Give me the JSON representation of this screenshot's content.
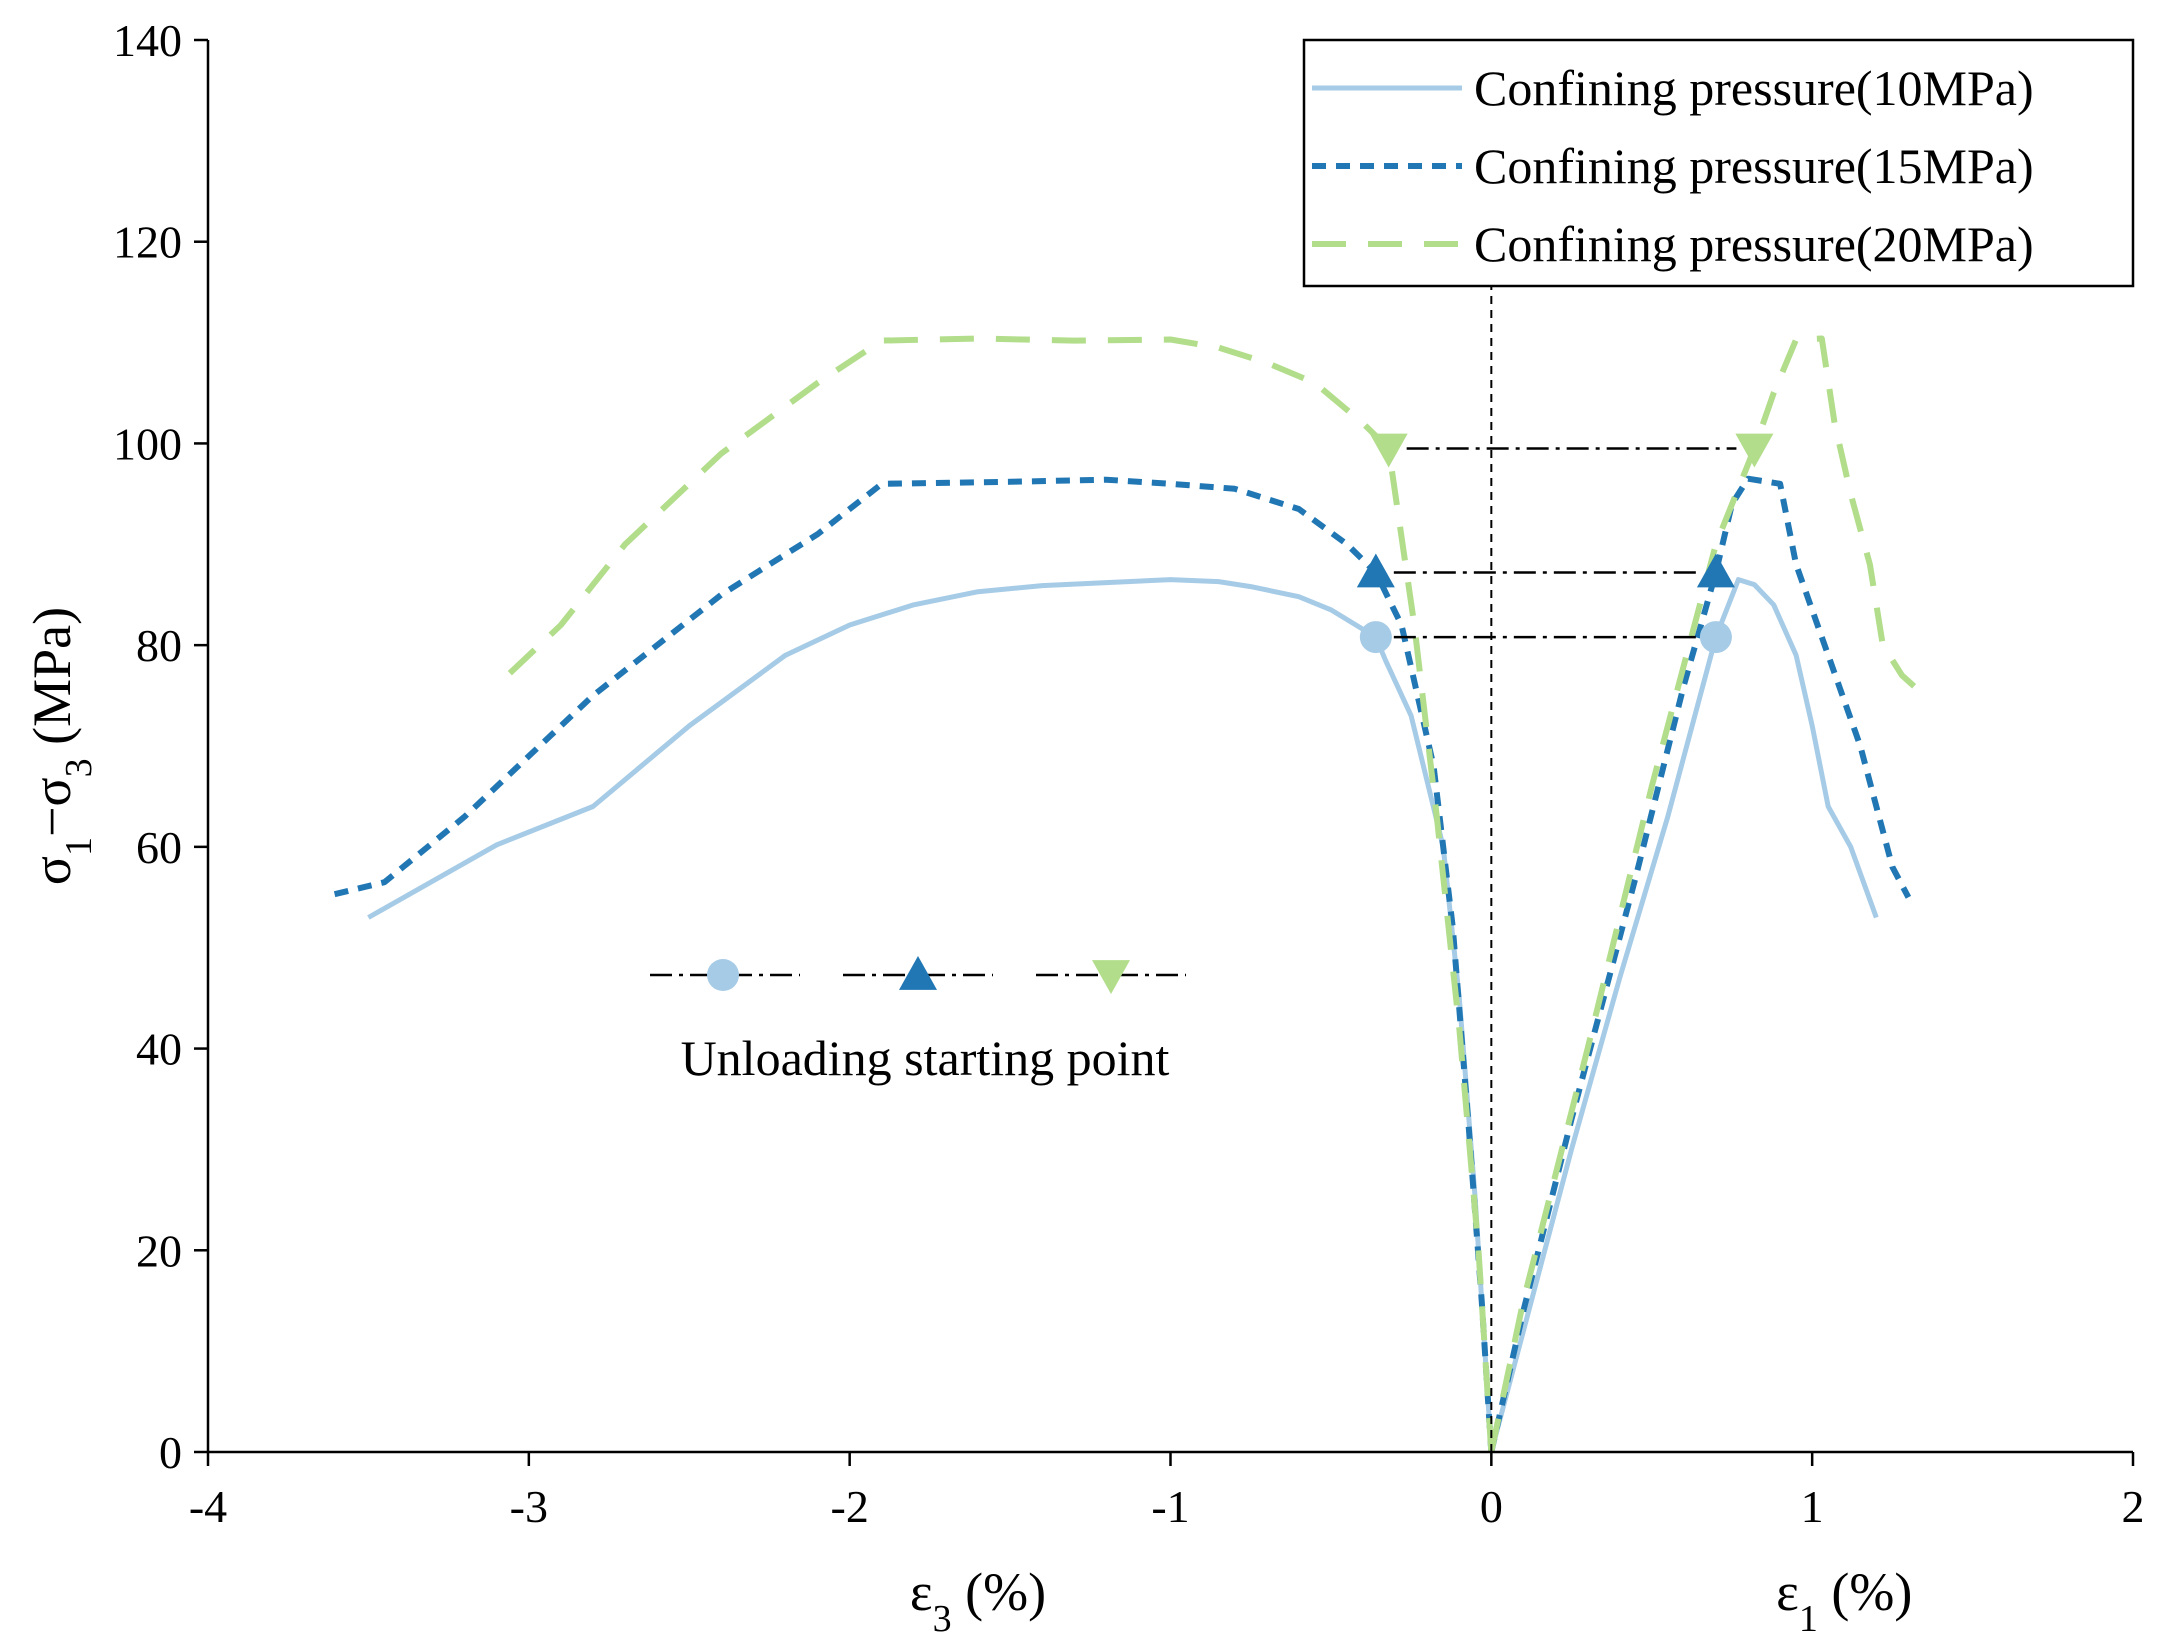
{
  "chart_data": {
    "type": "line",
    "title": "",
    "xlabel_left": {
      "symbol": "ε",
      "sub": "3",
      "unit": " (%)"
    },
    "xlabel_right": {
      "symbol": "ε",
      "sub": "1",
      "unit": " (%)"
    },
    "ylabel": {
      "s1": "σ",
      "sub1": "1",
      "dash": "−",
      "s2": "σ",
      "sub2": "3",
      "unit": " (MPa)"
    },
    "xlim": [
      -4,
      2
    ],
    "ylim": [
      0,
      140
    ],
    "xticks": [
      -4,
      -3,
      -2,
      -1,
      0,
      1,
      2
    ],
    "xtick_labels": [
      "-4",
      "-3",
      "-2",
      "-1",
      "0",
      "1",
      "2"
    ],
    "yticks": [
      0,
      20,
      40,
      60,
      80,
      100,
      120,
      140
    ],
    "ytick_labels": [
      "0",
      "20",
      "40",
      "60",
      "80",
      "100",
      "120",
      "140"
    ],
    "grid": false,
    "legend_position": "top-right",
    "colors": {
      "p10": "#a6cbe6",
      "p15": "#2077b4",
      "p20": "#b2dd8a",
      "axis": "#000000"
    },
    "series": [
      {
        "name": "Confining pressure(10MPa)",
        "style": "solid",
        "color_key": "p10",
        "lateral": [
          [
            0,
            0
          ],
          [
            -0.02,
            10
          ],
          [
            -0.05,
            25
          ],
          [
            -0.1,
            45
          ],
          [
            -0.15,
            60
          ],
          [
            -0.25,
            73
          ],
          [
            -0.33,
            78.5
          ],
          [
            -0.36,
            80.8
          ],
          [
            -0.5,
            83.5
          ],
          [
            -0.6,
            84.8
          ],
          [
            -0.75,
            85.8
          ],
          [
            -0.85,
            86.3
          ],
          [
            -1.0,
            86.5
          ],
          [
            -1.2,
            86.2
          ],
          [
            -1.4,
            85.9
          ],
          [
            -1.6,
            85.3
          ],
          [
            -1.8,
            84
          ],
          [
            -2.0,
            82
          ],
          [
            -2.2,
            79
          ],
          [
            -2.5,
            72
          ],
          [
            -2.8,
            64
          ],
          [
            -3.1,
            60.2
          ],
          [
            -3.5,
            53
          ]
        ],
        "axial": [
          [
            0,
            0
          ],
          [
            0.1,
            12
          ],
          [
            0.25,
            30
          ],
          [
            0.4,
            47
          ],
          [
            0.55,
            63
          ],
          [
            0.7,
            80.8
          ],
          [
            0.77,
            86.5
          ],
          [
            0.82,
            86
          ],
          [
            0.88,
            84
          ],
          [
            0.95,
            79
          ],
          [
            1.0,
            72
          ],
          [
            1.05,
            64
          ],
          [
            1.12,
            60
          ],
          [
            1.2,
            53
          ]
        ],
        "unloading_point": {
          "lateral": [
            -0.36,
            80.8
          ],
          "axial": [
            0.7,
            80.8
          ]
        }
      },
      {
        "name": "Confining pressure(15MPa)",
        "style": "dotted",
        "color_key": "p15",
        "lateral": [
          [
            0,
            0
          ],
          [
            -0.03,
            15
          ],
          [
            -0.07,
            32
          ],
          [
            -0.12,
            52
          ],
          [
            -0.18,
            68
          ],
          [
            -0.28,
            82
          ],
          [
            -0.36,
            87.2
          ],
          [
            -0.45,
            90
          ],
          [
            -0.6,
            93.5
          ],
          [
            -0.8,
            95.5
          ],
          [
            -1.0,
            96
          ],
          [
            -1.2,
            96.4
          ],
          [
            -1.5,
            96.2
          ],
          [
            -1.9,
            96
          ],
          [
            -2.1,
            91
          ],
          [
            -2.4,
            85
          ],
          [
            -2.8,
            75
          ],
          [
            -3.2,
            63
          ],
          [
            -3.45,
            56.5
          ],
          [
            -3.62,
            55.2
          ]
        ],
        "axial": [
          [
            0,
            0
          ],
          [
            0.1,
            14
          ],
          [
            0.25,
            33
          ],
          [
            0.45,
            57
          ],
          [
            0.6,
            76
          ],
          [
            0.7,
            87.2
          ],
          [
            0.75,
            94
          ],
          [
            0.8,
            96.5
          ],
          [
            0.9,
            96
          ],
          [
            0.95,
            88
          ],
          [
            1.05,
            79
          ],
          [
            1.15,
            70
          ],
          [
            1.25,
            58
          ],
          [
            1.3,
            55
          ]
        ],
        "unloading_point": {
          "lateral": [
            -0.36,
            87.2
          ],
          "axial": [
            0.7,
            87.2
          ]
        }
      },
      {
        "name": "Confining pressure(20MPa)",
        "style": "dashed",
        "color_key": "p20",
        "lateral": [
          [
            0,
            0
          ],
          [
            -0.04,
            20
          ],
          [
            -0.1,
            42
          ],
          [
            -0.17,
            63
          ],
          [
            -0.24,
            82
          ],
          [
            -0.32,
            99.5
          ],
          [
            -0.4,
            102
          ],
          [
            -0.55,
            106
          ],
          [
            -0.7,
            108
          ],
          [
            -0.85,
            109.5
          ],
          [
            -1.0,
            110.3
          ],
          [
            -1.3,
            110.2
          ],
          [
            -1.6,
            110.4
          ],
          [
            -1.9,
            110.2
          ],
          [
            -2.1,
            106
          ],
          [
            -2.4,
            99
          ],
          [
            -2.7,
            90
          ],
          [
            -2.9,
            82
          ],
          [
            -3.1,
            76
          ]
        ],
        "axial": [
          [
            0,
            0
          ],
          [
            0.1,
            15
          ],
          [
            0.3,
            40
          ],
          [
            0.5,
            66
          ],
          [
            0.7,
            90
          ],
          [
            0.82,
            99.5
          ],
          [
            0.88,
            105
          ],
          [
            0.95,
            110.3
          ],
          [
            1.03,
            110.4
          ],
          [
            1.07,
            102
          ],
          [
            1.12,
            95
          ],
          [
            1.18,
            88
          ],
          [
            1.22,
            80
          ],
          [
            1.28,
            77
          ],
          [
            1.35,
            75
          ]
        ],
        "unloading_point": {
          "lateral": [
            -0.32,
            99.5
          ],
          "axial": [
            0.82,
            99.5
          ]
        }
      }
    ],
    "annotation": {
      "text": "Unloading starting point"
    }
  }
}
